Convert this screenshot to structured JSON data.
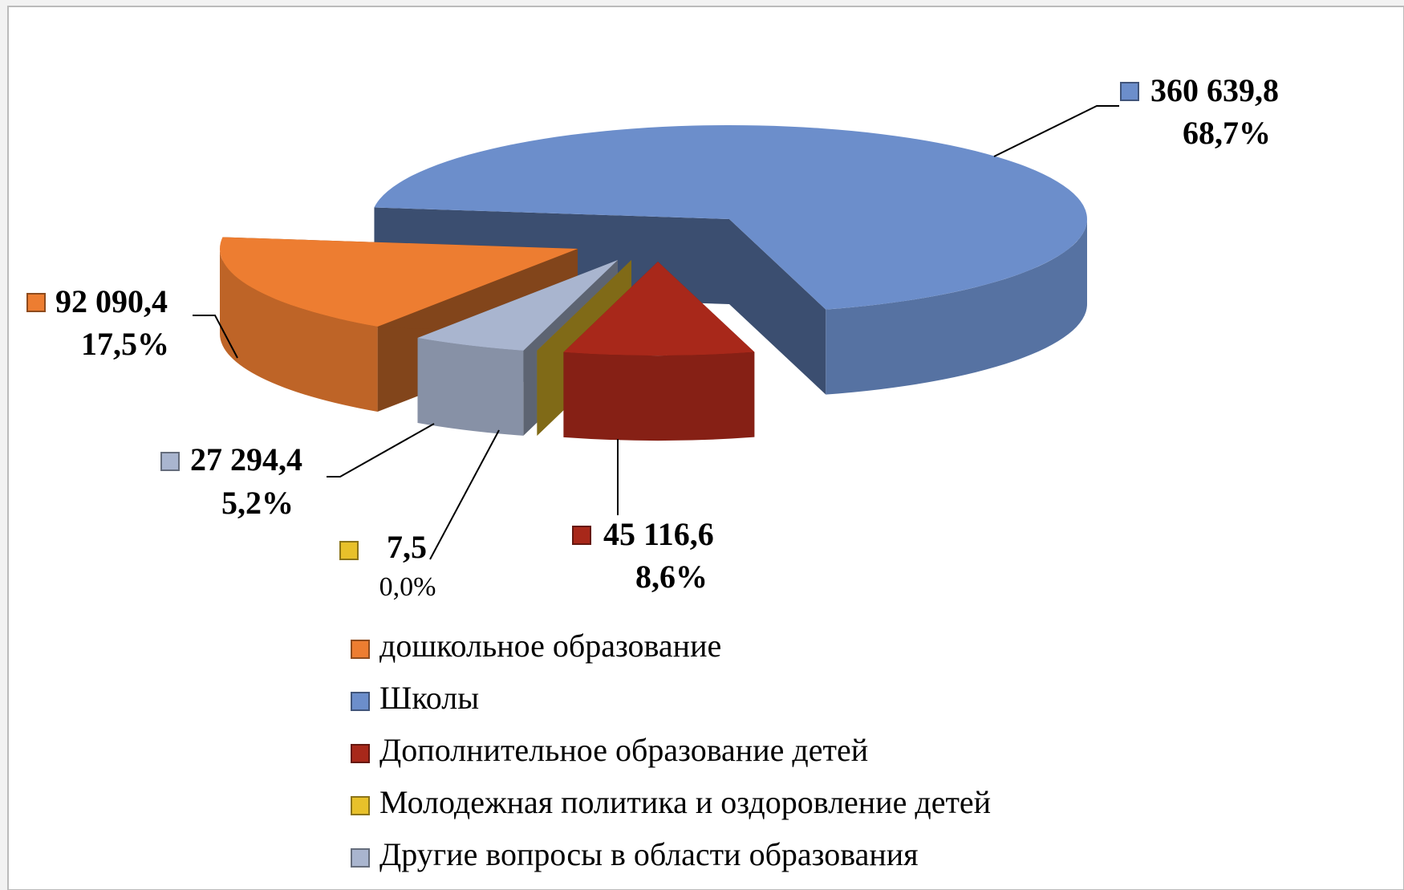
{
  "chart_data": {
    "type": "pie3d",
    "series": [
      {
        "name": "дошкольное образование",
        "color": "#ED7D31",
        "values": [
          92090.4
        ],
        "value_labels": [
          "92 090,4"
        ],
        "percent": 17.5,
        "percent_label": "17,5%"
      },
      {
        "name": "Школы",
        "color": "#6C8ECB",
        "values": [
          360639.8
        ],
        "value_labels": [
          "360 639,8"
        ],
        "percent": 68.7,
        "percent_label": "68,7%"
      },
      {
        "name": "Дополнительное образование детей",
        "color": "#A8281A",
        "values": [
          45116.6
        ],
        "value_labels": [
          "45 116,6"
        ],
        "percent": 8.6,
        "percent_label": "8,6%"
      },
      {
        "name": "Молодежная политика и оздоровление детей",
        "color": "#E8C12A",
        "values": [
          7.5
        ],
        "value_labels": [
          "7,5"
        ],
        "percent": 0.0,
        "percent_label": "0,0%"
      },
      {
        "name": "Другие вопросы в области образования",
        "color": "#A9B5CF",
        "values": [
          27294.4
        ],
        "value_labels": [
          "27 294,4"
        ],
        "percent": 5.2,
        "percent_label": "5,2%"
      }
    ],
    "legend": "bottom"
  }
}
